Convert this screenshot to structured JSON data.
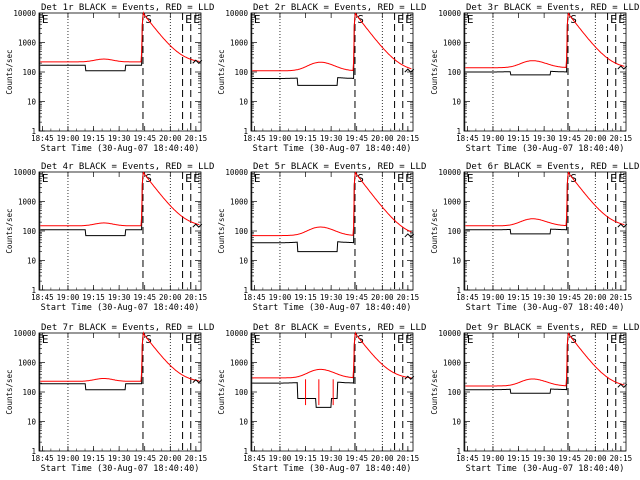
{
  "chart_data": [
    {
      "type": "line",
      "title": "Det 1r BLACK = Events, RED = LLD",
      "xlabel": "Start Time (30-Aug-07 18:40:40)",
      "ylabel": "Counts/sec",
      "yscale": "log",
      "ylim": [
        1,
        10000
      ],
      "xlim": [
        18.717,
        20.3
      ],
      "xticks": [
        "18:45",
        "19:00",
        "19:15",
        "19:30",
        "19:45",
        "20:00",
        "20:15"
      ],
      "yticks": [
        "1",
        "10",
        "100",
        "1000",
        "10000"
      ],
      "markers": [
        "E",
        "S",
        "E",
        "E"
      ],
      "profile": "flat",
      "series": [
        {
          "name": "Events",
          "color": "#000000",
          "base": 170,
          "dip": 110
        },
        {
          "name": "LLD",
          "color": "#ff0000",
          "base": 220
        }
      ]
    },
    {
      "type": "line",
      "title": "Det 2r BLACK = Events, RED = LLD",
      "xlabel": "Start Time (30-Aug-07 18:40:40)",
      "ylabel": "Counts/sec",
      "yscale": "log",
      "ylim": [
        1,
        10000
      ],
      "xlim": [
        18.717,
        20.3
      ],
      "xticks": [
        "18:45",
        "19:00",
        "19:15",
        "19:30",
        "19:45",
        "20:00",
        "20:15"
      ],
      "yticks": [
        "1",
        "10",
        "100",
        "1000",
        "10000"
      ],
      "markers": [
        "E",
        "S",
        "E",
        "E"
      ],
      "profile": "mid",
      "series": [
        {
          "name": "Events",
          "color": "#000000",
          "base": 60,
          "dip": 35
        },
        {
          "name": "LLD",
          "color": "#ff0000",
          "base": 110
        }
      ]
    },
    {
      "type": "line",
      "title": "Det 3r BLACK = Events, RED = LLD",
      "xlabel": "Start Time (30-Aug-07 18:40:40)",
      "ylabel": "Counts/sec",
      "yscale": "log",
      "ylim": [
        1,
        10000
      ],
      "xlim": [
        18.717,
        20.3
      ],
      "xticks": [
        "18:45",
        "19:00",
        "19:15",
        "19:30",
        "19:45",
        "20:00",
        "20:15"
      ],
      "yticks": [
        "1",
        "10",
        "100",
        "1000",
        "10000"
      ],
      "markers": [
        "E",
        "S",
        "E",
        "E"
      ],
      "profile": "upper",
      "series": [
        {
          "name": "Events",
          "color": "#000000",
          "base": 100,
          "dip": 80
        },
        {
          "name": "LLD",
          "color": "#ff0000",
          "base": 140
        }
      ]
    },
    {
      "type": "line",
      "title": "Det 4r BLACK = Events, RED = LLD",
      "xlabel": "Start Time (30-Aug-07 18:40:40)",
      "ylabel": "Counts/sec",
      "yscale": "log",
      "ylim": [
        1,
        10000
      ],
      "xlim": [
        18.717,
        20.3
      ],
      "xticks": [
        "18:45",
        "19:00",
        "19:15",
        "19:30",
        "19:45",
        "20:00",
        "20:15"
      ],
      "yticks": [
        "1",
        "10",
        "100",
        "1000",
        "10000"
      ],
      "markers": [
        "E",
        "S",
        "E",
        "E"
      ],
      "profile": "flat",
      "series": [
        {
          "name": "Events",
          "color": "#000000",
          "base": 110,
          "dip": 70
        },
        {
          "name": "LLD",
          "color": "#ff0000",
          "base": 150
        }
      ]
    },
    {
      "type": "line",
      "title": "Det 5r BLACK = Events, RED = LLD",
      "xlabel": "Start Time (30-Aug-07 18:40:40)",
      "ylabel": "Counts/sec",
      "yscale": "log",
      "ylim": [
        1,
        10000
      ],
      "xlim": [
        18.717,
        20.3
      ],
      "xticks": [
        "18:45",
        "19:00",
        "19:15",
        "19:30",
        "19:45",
        "20:00",
        "20:15"
      ],
      "yticks": [
        "1",
        "10",
        "100",
        "1000",
        "10000"
      ],
      "markers": [
        "E",
        "S",
        "E",
        "E"
      ],
      "profile": "mid",
      "series": [
        {
          "name": "Events",
          "color": "#000000",
          "base": 40,
          "dip": 20
        },
        {
          "name": "LLD",
          "color": "#ff0000",
          "base": 70
        }
      ]
    },
    {
      "type": "line",
      "title": "Det 6r BLACK = Events, RED = LLD",
      "xlabel": "Start Time (30-Aug-07 18:40:40)",
      "ylabel": "Counts/sec",
      "yscale": "log",
      "ylim": [
        1,
        10000
      ],
      "xlim": [
        18.717,
        20.3
      ],
      "xticks": [
        "18:45",
        "19:00",
        "19:15",
        "19:30",
        "19:45",
        "20:00",
        "20:15"
      ],
      "yticks": [
        "1",
        "10",
        "100",
        "1000",
        "10000"
      ],
      "markers": [
        "E",
        "S",
        "E",
        "E"
      ],
      "profile": "upper",
      "series": [
        {
          "name": "Events",
          "color": "#000000",
          "base": 110,
          "dip": 80
        },
        {
          "name": "LLD",
          "color": "#ff0000",
          "base": 150
        }
      ]
    },
    {
      "type": "line",
      "title": "Det 7r BLACK = Events, RED = LLD",
      "xlabel": "Start Time (30-Aug-07 18:40:40)",
      "ylabel": "Counts/sec",
      "yscale": "log",
      "ylim": [
        1,
        10000
      ],
      "xlim": [
        18.717,
        20.3
      ],
      "xticks": [
        "18:45",
        "19:00",
        "19:15",
        "19:30",
        "19:45",
        "20:00",
        "20:15"
      ],
      "yticks": [
        "1",
        "10",
        "100",
        "1000",
        "10000"
      ],
      "markers": [
        "E",
        "S",
        "E",
        "E"
      ],
      "profile": "flat",
      "series": [
        {
          "name": "Events",
          "color": "#000000",
          "base": 190,
          "dip": 120
        },
        {
          "name": "LLD",
          "color": "#ff0000",
          "base": 230
        }
      ]
    },
    {
      "type": "line",
      "title": "Det 8r BLACK = Events, RED = LLD",
      "xlabel": "Start Time (30-Aug-07 18:40:40)",
      "ylabel": "Counts/sec",
      "yscale": "log",
      "ylim": [
        1,
        10000
      ],
      "xlim": [
        18.717,
        20.3
      ],
      "xticks": [
        "18:45",
        "19:00",
        "19:15",
        "19:30",
        "19:45",
        "20:00",
        "20:15"
      ],
      "yticks": [
        "1",
        "10",
        "100",
        "1000",
        "10000"
      ],
      "markers": [
        "E",
        "S",
        "E",
        "E"
      ],
      "profile": "mid",
      "spiky": true,
      "series": [
        {
          "name": "Events",
          "color": "#000000",
          "base": 200,
          "dip": 60
        },
        {
          "name": "LLD",
          "color": "#ff0000",
          "base": 300
        }
      ]
    },
    {
      "type": "line",
      "title": "Det 9r BLACK = Events, RED = LLD",
      "xlabel": "Start Time (30-Aug-07 18:40:40)",
      "ylabel": "Counts/sec",
      "yscale": "log",
      "ylim": [
        1,
        10000
      ],
      "xlim": [
        18.717,
        20.3
      ],
      "xticks": [
        "18:45",
        "19:00",
        "19:15",
        "19:30",
        "19:45",
        "20:00",
        "20:15"
      ],
      "yticks": [
        "1",
        "10",
        "100",
        "1000",
        "10000"
      ],
      "markers": [
        "E",
        "S",
        "E",
        "E"
      ],
      "profile": "upper",
      "series": [
        {
          "name": "Events",
          "color": "#000000",
          "base": 120,
          "dip": 90
        },
        {
          "name": "LLD",
          "color": "#ff0000",
          "base": 160
        }
      ]
    }
  ]
}
